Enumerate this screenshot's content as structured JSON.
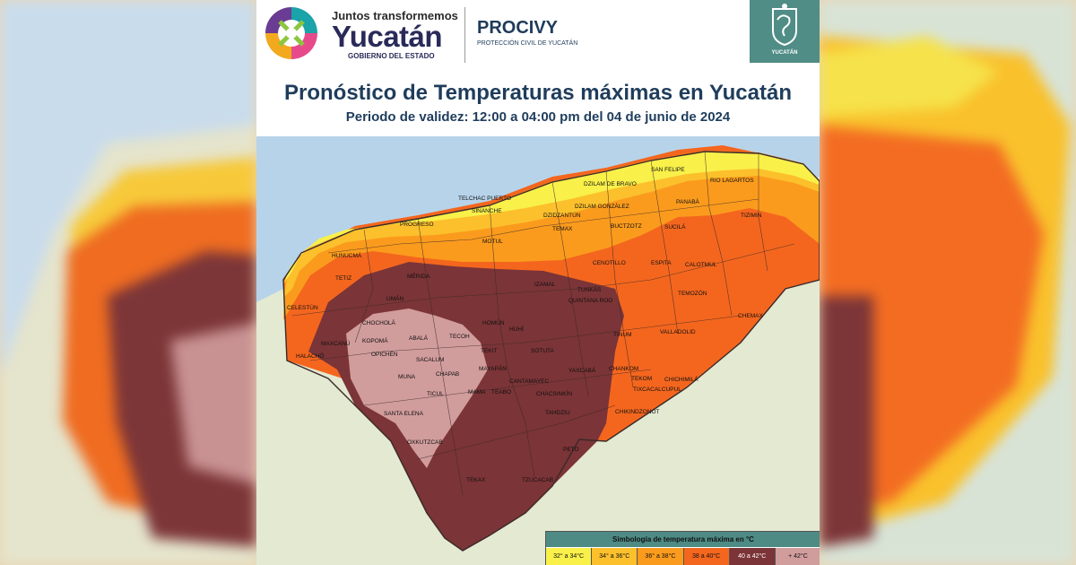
{
  "header": {
    "logo_tagline": "Juntos transformemos",
    "logo_name": "Yucatán",
    "logo_sub": "GOBIERNO DEL ESTADO",
    "org_name": "PROCIVY",
    "org_sub": "PROTECCIÓN CIVIL DE YUCATÁN",
    "seal_word": "YUCATÁN",
    "title": "Pronóstico de Temperaturas máximas en Yucatán",
    "subtitle": "Periodo de validez: 12:00 a 04:00 pm del 04 de junio de 2024"
  },
  "colors": {
    "sea": "#b7d3ea",
    "land": "#e4e9d2",
    "range_32_34": "#f9f04a",
    "range_34_36": "#fcc02c",
    "range_36_38": "#fb9b1d",
    "range_38_40": "#f4661e",
    "range_40_42": "#7b3437",
    "range_gt_42": "#d19c9c"
  },
  "map_labels": [
    {
      "text": "RIO LAGARTOS"
    },
    {
      "text": "SAN FELIPE"
    },
    {
      "text": "DZILAM DE BRAVO"
    },
    {
      "text": "TELCHAC PUERTO"
    },
    {
      "text": "SINANCHE"
    },
    {
      "text": "DZILAM GONZÁLEZ"
    },
    {
      "text": "PANABÁ"
    },
    {
      "text": "TIZIMIN"
    },
    {
      "text": "PROGRESO"
    },
    {
      "text": "DZIDZANTÚN"
    },
    {
      "text": "BUCTZOTZ"
    },
    {
      "text": "SUCILÁ"
    },
    {
      "text": "MOTUL"
    },
    {
      "text": "TEMAX"
    },
    {
      "text": "HUNUCMÁ"
    },
    {
      "text": "CENOTILLO"
    },
    {
      "text": "ESPITA"
    },
    {
      "text": "CALOTMUL"
    },
    {
      "text": "TETIZ"
    },
    {
      "text": "MÉRIDA"
    },
    {
      "text": "IZAMAL"
    },
    {
      "text": "TUNKÁS"
    },
    {
      "text": "QUINTANA ROO"
    },
    {
      "text": "TEMOZÓN"
    },
    {
      "text": "CELESTÚN"
    },
    {
      "text": "UMÁN"
    },
    {
      "text": "CHEMAX"
    },
    {
      "text": "CHOCHOLÁ"
    },
    {
      "text": "KOPOMÁ"
    },
    {
      "text": "ABALÁ"
    },
    {
      "text": "TECOH"
    },
    {
      "text": "HOMÚN"
    },
    {
      "text": "HUHÍ"
    },
    {
      "text": "TINUM"
    },
    {
      "text": "VALLADOLID"
    },
    {
      "text": "MAXCANÚ"
    },
    {
      "text": "OPICHÉN"
    },
    {
      "text": "SACALUM"
    },
    {
      "text": "TEKIT"
    },
    {
      "text": "SOTUTA"
    },
    {
      "text": "YAXCABÁ"
    },
    {
      "text": "HALACHÓ"
    },
    {
      "text": "MUNA"
    },
    {
      "text": "CHAPAB"
    },
    {
      "text": "MAMA"
    },
    {
      "text": "MAYAPÁN"
    },
    {
      "text": "CHANKOM"
    },
    {
      "text": "TEKOM"
    },
    {
      "text": "CHICHIMILÁ"
    },
    {
      "text": "TICUL"
    },
    {
      "text": "TEABO"
    },
    {
      "text": "CANTAMAYEC"
    },
    {
      "text": "CHACSINKÍN"
    },
    {
      "text": "TIXCACALCUPUL"
    },
    {
      "text": "SANTA ELENA"
    },
    {
      "text": "TAHDZIU"
    },
    {
      "text": "CHIKINDZONOT"
    },
    {
      "text": "OXKUTZCAB"
    },
    {
      "text": "PETO"
    },
    {
      "text": "TEKAX"
    },
    {
      "text": "TZUCACAB"
    }
  ],
  "legend": {
    "title": "Simbología de temperatura máxima en °C",
    "ranges": [
      {
        "label": "32° a 34°C",
        "color": "#f9f04a"
      },
      {
        "label": "34° a 36°C",
        "color": "#fcc02c"
      },
      {
        "label": "36° a 38°C",
        "color": "#fb9b1d"
      },
      {
        "label": "38 a 40°C",
        "color": "#f4661e"
      },
      {
        "label": "40 a 42°C",
        "color": "#7b3437"
      },
      {
        "label": "+ 42°C",
        "color": "#d19c9c"
      }
    ]
  }
}
